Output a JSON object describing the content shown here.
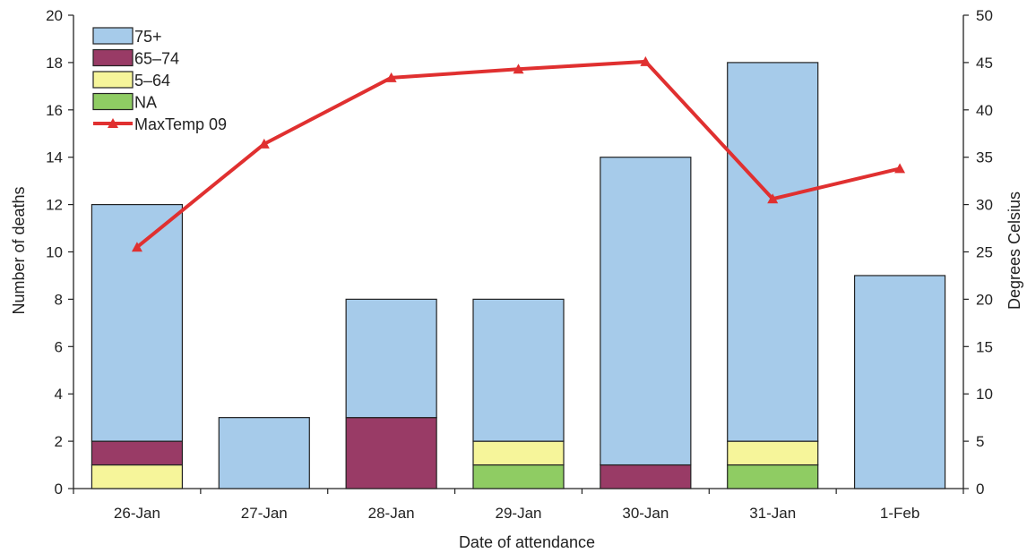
{
  "chart_data": {
    "type": "bar",
    "stacked": true,
    "categories": [
      "26-Jan",
      "27-Jan",
      "28-Jan",
      "29-Jan",
      "30-Jan",
      "31-Jan",
      "1-Feb"
    ],
    "series": [
      {
        "name": "NA",
        "color": "#8fcc63",
        "values": [
          0,
          0,
          0,
          1,
          0,
          1,
          0
        ]
      },
      {
        "name": "5–64",
        "color": "#f6f59a",
        "values": [
          1,
          0,
          0,
          1,
          0,
          1,
          0
        ]
      },
      {
        "name": "65–74",
        "color": "#993b66",
        "values": [
          1,
          0,
          3,
          0,
          1,
          0,
          0
        ]
      },
      {
        "name": "75+",
        "color": "#a6cbea",
        "values": [
          10,
          3,
          5,
          6,
          13,
          16,
          9
        ]
      }
    ],
    "line_series": {
      "name": "MaxTemp 09",
      "color": "#e03030",
      "axis": "right",
      "values": [
        25.5,
        36.4,
        43.4,
        44.3,
        45.1,
        30.6,
        33.8
      ]
    },
    "legend_order": [
      "75+",
      "65–74",
      "5–64",
      "NA",
      "MaxTemp 09"
    ],
    "legend_position": "top-left",
    "xlabel": "Date of attendance",
    "ylabel": "Number of deaths",
    "y2label": "Degrees Celsius",
    "ylim": [
      0,
      20
    ],
    "y_ticks": [
      0,
      2,
      4,
      6,
      8,
      10,
      12,
      14,
      16,
      18,
      20
    ],
    "y2lim": [
      0,
      50
    ],
    "y2_ticks": [
      0,
      5,
      10,
      15,
      20,
      25,
      30,
      35,
      40,
      45,
      50
    ],
    "grid": false
  }
}
